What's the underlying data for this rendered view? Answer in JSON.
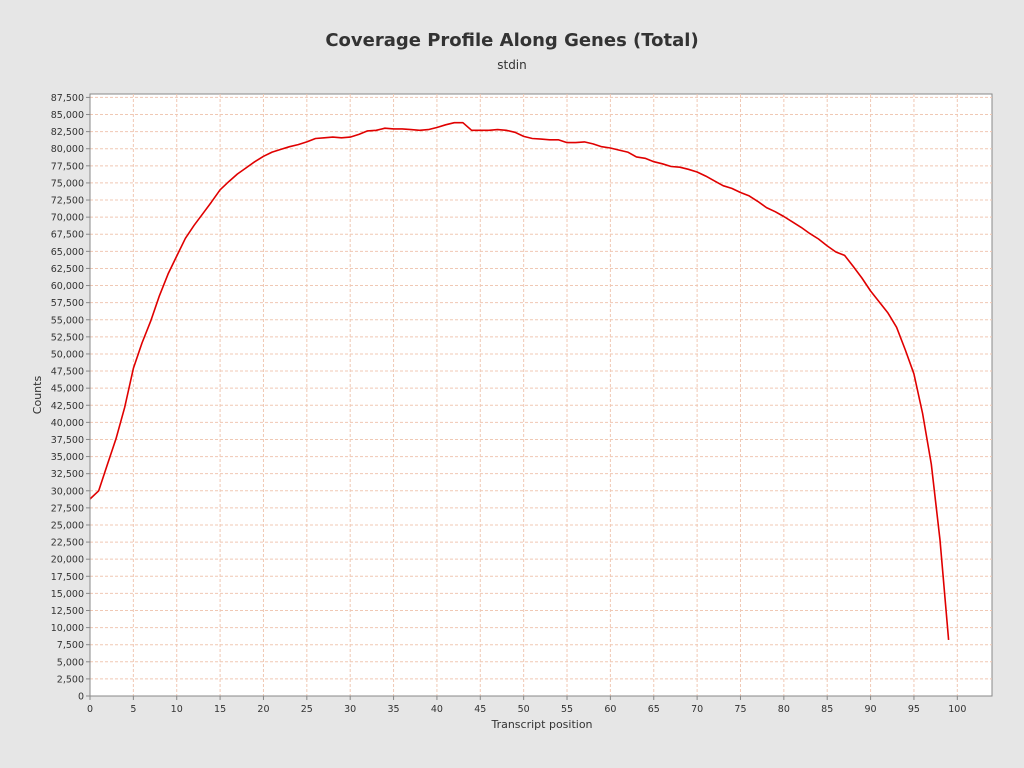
{
  "chart_data": {
    "type": "line",
    "title": "Coverage Profile Along Genes (Total)",
    "subtitle": "stdin",
    "xlabel": "Transcript position",
    "ylabel": "Counts",
    "xlim": [
      0,
      104
    ],
    "ylim": [
      0,
      88000
    ],
    "x_ticks": [
      0,
      5,
      10,
      15,
      20,
      25,
      30,
      35,
      40,
      45,
      50,
      55,
      60,
      65,
      70,
      75,
      80,
      85,
      90,
      95,
      100
    ],
    "y_ticks": [
      0,
      2500,
      5000,
      7500,
      10000,
      12500,
      15000,
      17500,
      20000,
      22500,
      25000,
      27500,
      30000,
      32500,
      35000,
      37500,
      40000,
      42500,
      45000,
      47500,
      50000,
      52500,
      55000,
      57500,
      60000,
      62500,
      65000,
      67500,
      70000,
      72500,
      75000,
      77500,
      80000,
      82500,
      85000,
      87500
    ],
    "y_tick_labels": [
      "0",
      "2,500",
      "5,000",
      "7,500",
      "10,000",
      "12,500",
      "15,000",
      "17,500",
      "20,000",
      "22,500",
      "25,000",
      "27,500",
      "30,000",
      "32,500",
      "35,000",
      "37,500",
      "40,000",
      "42,500",
      "45,000",
      "47,500",
      "50,000",
      "52,500",
      "55,000",
      "57,500",
      "60,000",
      "62,500",
      "65,000",
      "67,500",
      "70,000",
      "72,500",
      "75,000",
      "77,500",
      "80,000",
      "82,500",
      "85,000",
      "87,500"
    ],
    "grid": true,
    "legend": "none",
    "colors": {
      "background": "#e6e6e6",
      "plot_background": "#ffffff",
      "grid": "#f0c8b4",
      "line": "#e00000",
      "axis": "#888888",
      "text": "#333333"
    },
    "series": [
      {
        "x": [
          0,
          1,
          2,
          3,
          4,
          5,
          6,
          7,
          8,
          9,
          10,
          11,
          12,
          13,
          14,
          15,
          16,
          17,
          18,
          19,
          20,
          21,
          22,
          23,
          24,
          25,
          26,
          27,
          28,
          29,
          30,
          31,
          32,
          33,
          34,
          35,
          36,
          37,
          38,
          39,
          40,
          41,
          42,
          43,
          44,
          45,
          46,
          47,
          48,
          49,
          50,
          51,
          52,
          53,
          54,
          55,
          56,
          57,
          58,
          59,
          60,
          61,
          62,
          63,
          64,
          65,
          66,
          67,
          68,
          69,
          70,
          71,
          72,
          73,
          74,
          75,
          76,
          77,
          78,
          79,
          80,
          81,
          82,
          83,
          84,
          85,
          86,
          87,
          88,
          89,
          90,
          91,
          92,
          93,
          94,
          95,
          96,
          97,
          98,
          99
        ],
        "values": [
          28800,
          30000,
          33800,
          37600,
          42200,
          47900,
          51600,
          54800,
          58500,
          61700,
          64300,
          66900,
          68800,
          70500,
          72200,
          74000,
          75200,
          76300,
          77200,
          78100,
          78900,
          79500,
          79900,
          80300,
          80600,
          81000,
          81500,
          81600,
          81700,
          81600,
          81700,
          82100,
          82600,
          82700,
          83000,
          82900,
          82900,
          82800,
          82700,
          82800,
          83100,
          83500,
          83800,
          83800,
          82700,
          82700,
          82700,
          82800,
          82700,
          82400,
          81800,
          81500,
          81400,
          81300,
          81300,
          80900,
          80900,
          81000,
          80700,
          80300,
          80100,
          79800,
          79500,
          78800,
          78600,
          78100,
          77800,
          77400,
          77300,
          77000,
          76600,
          76000,
          75300,
          74600,
          74200,
          73600,
          73100,
          72300,
          71400,
          70800,
          70100,
          69300,
          68500,
          67600,
          66800,
          65800,
          64900,
          64400,
          62800,
          61100,
          59200,
          57600,
          56000,
          53900,
          50600,
          47100,
          41300,
          33900,
          22800,
          8200
        ]
      }
    ]
  }
}
